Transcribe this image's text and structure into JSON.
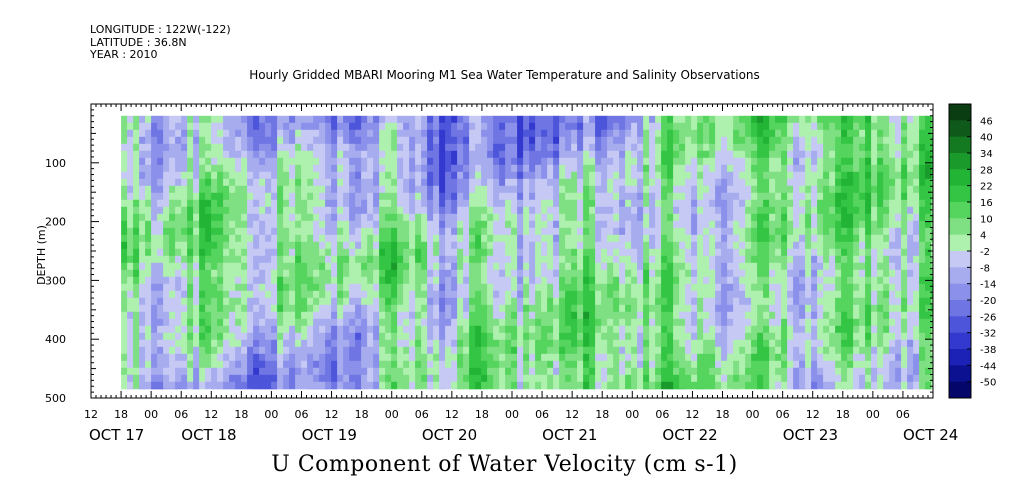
{
  "meta": {
    "longitude": "LONGITUDE : 122W(-122)",
    "latitude": "LATITUDE : 36.8N",
    "year": "YEAR : 2010"
  },
  "title": "Hourly Gridded MBARI Mooring M1 Sea Water Temperature and Salinity Observations",
  "bottom_title": "U Component of Water Velocity (cm s-1)",
  "chart_data": {
    "type": "heatmap",
    "title": "Hourly Gridded MBARI Mooring M1 Sea Water Temperature and Salinity Observations",
    "variable": "U Component of Water Velocity (cm s-1)",
    "ylabel": "DEPTH (m)",
    "y_reversed": true,
    "ylim": [
      0,
      500
    ],
    "y_ticks": [
      100,
      200,
      300,
      400,
      500
    ],
    "x_range_hours": [
      "OCT 17 12",
      "OCT 24 12"
    ],
    "x_ticks": [
      "12",
      "18",
      "00",
      "06",
      "12",
      "18",
      "00",
      "06",
      "12",
      "18",
      "00",
      "06",
      "12",
      "18",
      "00",
      "06",
      "12",
      "18",
      "00",
      "06",
      "12",
      "18",
      "00",
      "06",
      "12",
      "18",
      "00",
      "06"
    ],
    "x_major_labels": [
      "OCT 17",
      "OCT 18",
      "OCT 19",
      "OCT 20",
      "OCT 21",
      "OCT 22",
      "OCT 23",
      "OCT 24"
    ],
    "data_extent": {
      "depth_top": 20,
      "depth_bottom": 485,
      "time_start": "OCT 17 18"
    },
    "colorbar_levels": [
      46,
      40,
      34,
      28,
      22,
      16,
      10,
      4,
      -2,
      -8,
      -14,
      -20,
      -26,
      -32,
      -38,
      -44,
      -50
    ],
    "colorbar_labels": [
      "46",
      "40",
      "34",
      "28",
      "22",
      "16",
      "10",
      "4",
      "-2",
      "-8",
      "-14",
      "-20",
      "-26",
      "-32",
      "-38",
      "-44",
      "-50"
    ],
    "colorbar_colors": [
      "#0b3d12",
      "#0f5a1a",
      "#147a22",
      "#1a9a2b",
      "#22b535",
      "#34c545",
      "#55d45e",
      "#7fe083",
      "#aef0ae",
      "#c5c9f4",
      "#a7acef",
      "#8b91ea",
      "#6f75e3",
      "#4d55da",
      "#3339cf",
      "#1d22b6",
      "#0c1192",
      "#04066a"
    ],
    "depth_profile_cm_s": [
      {
        "time": "OCT 17 18",
        "surface": -10,
        "mid": 6,
        "deep": -12
      },
      {
        "time": "OCT 18 06",
        "surface": -6,
        "mid": 10,
        "deep": -14
      },
      {
        "time": "OCT 19 06",
        "surface": -18,
        "mid": 8,
        "deep": -16
      },
      {
        "time": "OCT 20 06",
        "surface": -24,
        "mid": -4,
        "deep": 8
      },
      {
        "time": "OCT 21 06",
        "surface": -20,
        "mid": 6,
        "deep": 10
      },
      {
        "time": "OCT 22 06",
        "surface": 8,
        "mid": -6,
        "deep": 12
      },
      {
        "time": "OCT 23 06",
        "surface": 10,
        "mid": 4,
        "deep": -8
      },
      {
        "time": "OCT 24 06",
        "surface": 16,
        "mid": 8,
        "deep": 6
      }
    ]
  }
}
